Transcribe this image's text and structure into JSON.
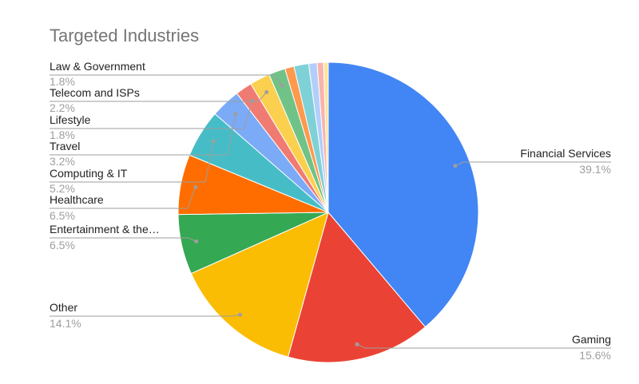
{
  "chart_data": {
    "type": "pie",
    "title": "Targeted Industries",
    "slices": [
      {
        "label": "Financial Services",
        "value": 39.1,
        "value_label": "39.1%",
        "color": "#4285f4",
        "labeled": true
      },
      {
        "label": "Gaming",
        "value": 15.6,
        "value_label": "15.6%",
        "color": "#ea4335",
        "labeled": true
      },
      {
        "label": "Other",
        "value": 14.1,
        "value_label": "14.1%",
        "color": "#fbbc04",
        "labeled": true
      },
      {
        "label": "Entertainment & the…",
        "value": 6.5,
        "value_label": "6.5%",
        "color": "#34a853",
        "labeled": true
      },
      {
        "label": "Healthcare",
        "value": 6.5,
        "value_label": "6.5%",
        "color": "#ff6d01",
        "labeled": true
      },
      {
        "label": "Computing & IT",
        "value": 5.2,
        "value_label": "5.2%",
        "color": "#46bdc6",
        "labeled": true
      },
      {
        "label": "Travel",
        "value": 3.2,
        "value_label": "3.2%",
        "color": "#7baaf7",
        "labeled": true
      },
      {
        "label": "Lifestyle",
        "value": 1.8,
        "value_label": "1.8%",
        "color": "#f07b72",
        "labeled": true
      },
      {
        "label": "Telecom and ISPs",
        "value": 2.2,
        "value_label": "2.2%",
        "color": "#fcd04f",
        "labeled": true
      },
      {
        "label": "Law & Government",
        "value": 1.8,
        "value_label": "1.8%",
        "color": "#71c287",
        "labeled": true
      },
      {
        "label": "",
        "value": 1.0,
        "value_label": "",
        "color": "#ff994d",
        "labeled": false
      },
      {
        "label": "",
        "value": 1.6,
        "value_label": "",
        "color": "#7ed1d7",
        "labeled": false
      },
      {
        "label": "",
        "value": 0.9,
        "value_label": "",
        "color": "#b3cefb",
        "labeled": false
      },
      {
        "label": "",
        "value": 0.7,
        "value_label": "",
        "color": "#f7b4ae",
        "labeled": false
      },
      {
        "label": "",
        "value": 0.5,
        "value_label": "",
        "color": "#fde49b",
        "labeled": false
      }
    ]
  }
}
